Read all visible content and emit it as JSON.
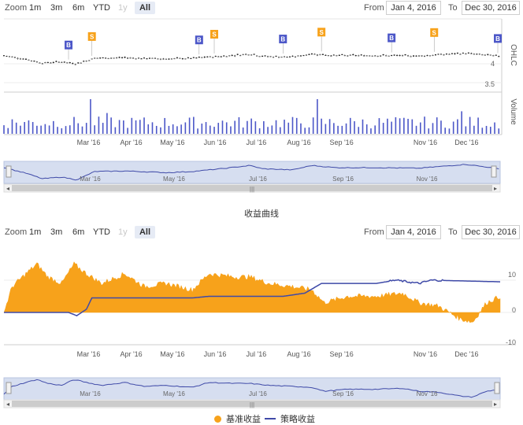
{
  "colors": {
    "navy": "#3f4aa8",
    "orange": "#f7a21b",
    "volume": "#4c57c8",
    "navigator_bg": "#d6def0",
    "grid": "#e6e6e6"
  },
  "top_panel": {
    "zoom_label": "Zoom",
    "zoom_buttons": [
      "1m",
      "3m",
      "6m",
      "YTD",
      "1y",
      "All"
    ],
    "range_from_label": "From",
    "range_from_value": "Jan 4, 2016",
    "range_to_label": "To",
    "range_to_value": "Dec 30, 2016",
    "ohlc_axis_label": "OHLC",
    "volume_axis_label": "Volume"
  },
  "section_title": "收益曲线",
  "bottom_panel": {
    "zoom_label": "Zoom",
    "zoom_buttons": [
      "1m",
      "3m",
      "6m",
      "YTD",
      "1y",
      "All"
    ],
    "range_from_label": "From",
    "range_from_value": "Jan 4, 2016",
    "range_to_label": "To",
    "range_to_value": "Dec 30, 2016"
  },
  "legend": {
    "benchmark_label": "基准收益",
    "strategy_label": "策略收益"
  },
  "navigator_labels": [
    "Mar '16",
    "May '16",
    "Jul '16",
    "Sep '16",
    "Nov '16"
  ],
  "chart_data": [
    {
      "type": "ohlc",
      "x_tick_labels": [
        "Mar '16",
        "Apr '16",
        "May '16",
        "Jun '16",
        "Jul '16",
        "Aug '16",
        "Sep '16",
        "Nov '16",
        "Dec '16"
      ],
      "y_tick_labels": [
        "3.5",
        "4"
      ],
      "ylim": [
        3.5,
        4.4
      ],
      "price_path": [
        {
          "date": "2016-01-04",
          "close": 4.22
        },
        {
          "date": "2016-01-20",
          "close": 4.12
        },
        {
          "date": "2016-02-01",
          "close": 4.02
        },
        {
          "date": "2016-02-15",
          "close": 4.05
        },
        {
          "date": "2016-02-26",
          "close": 4.0
        },
        {
          "date": "2016-03-10",
          "close": 4.15
        },
        {
          "date": "2016-04-01",
          "close": 4.16
        },
        {
          "date": "2016-05-01",
          "close": 4.13
        },
        {
          "date": "2016-05-20",
          "close": 4.15
        },
        {
          "date": "2016-06-10",
          "close": 4.2
        },
        {
          "date": "2016-07-01",
          "close": 4.26
        },
        {
          "date": "2016-07-10",
          "close": 4.2
        },
        {
          "date": "2016-08-01",
          "close": 4.18
        },
        {
          "date": "2016-08-15",
          "close": 4.26
        },
        {
          "date": "2016-09-01",
          "close": 4.22
        },
        {
          "date": "2016-10-01",
          "close": 4.22
        },
        {
          "date": "2016-11-01",
          "close": 4.21
        },
        {
          "date": "2016-12-05",
          "close": 4.28
        },
        {
          "date": "2016-12-30",
          "close": 4.2
        }
      ],
      "flags": [
        {
          "date": "2016-02-20",
          "label": "B"
        },
        {
          "date": "2016-03-08",
          "label": "S"
        },
        {
          "date": "2016-05-25",
          "label": "B"
        },
        {
          "date": "2016-06-05",
          "label": "S"
        },
        {
          "date": "2016-07-25",
          "label": "B"
        },
        {
          "date": "2016-08-22",
          "label": "S"
        },
        {
          "date": "2016-10-12",
          "label": "B"
        },
        {
          "date": "2016-11-12",
          "label": "S"
        },
        {
          "date": "2016-12-30",
          "label": "B"
        }
      ],
      "volume": {
        "spikes": [
          {
            "date": "2016-03-06",
            "value": 1.0
          },
          {
            "date": "2016-08-20",
            "value": 1.0
          },
          {
            "date": "2016-03-18",
            "value": 0.6
          },
          {
            "date": "2016-12-01",
            "value": 0.65
          }
        ]
      }
    },
    {
      "type": "area",
      "title": "收益曲线",
      "y_tick_labels": [
        "10",
        "0",
        "-10"
      ],
      "ylim": [
        -10,
        14
      ],
      "x_tick_labels": [
        "Mar '16",
        "Apr '16",
        "May '16",
        "Jun '16",
        "Jul '16",
        "Aug '16",
        "Sep '16",
        "Nov '16",
        "Dec '16"
      ],
      "series": [
        {
          "name": "基准收益",
          "type": "area",
          "points": [
            {
              "date": "2016-01-04",
              "value": 0
            },
            {
              "date": "2016-01-10",
              "value": 8
            },
            {
              "date": "2016-01-20",
              "value": 12
            },
            {
              "date": "2016-01-28",
              "value": 15
            },
            {
              "date": "2016-02-05",
              "value": 11
            },
            {
              "date": "2016-02-15",
              "value": 9
            },
            {
              "date": "2016-02-24",
              "value": 15
            },
            {
              "date": "2016-03-04",
              "value": 12
            },
            {
              "date": "2016-03-15",
              "value": 9
            },
            {
              "date": "2016-04-01",
              "value": 12
            },
            {
              "date": "2016-04-15",
              "value": 8
            },
            {
              "date": "2016-05-01",
              "value": 9
            },
            {
              "date": "2016-05-20",
              "value": 7
            },
            {
              "date": "2016-06-01",
              "value": 12
            },
            {
              "date": "2016-06-20",
              "value": 11
            },
            {
              "date": "2016-07-01",
              "value": 11
            },
            {
              "date": "2016-07-15",
              "value": 9
            },
            {
              "date": "2016-08-01",
              "value": 8
            },
            {
              "date": "2016-08-15",
              "value": 7
            },
            {
              "date": "2016-08-24",
              "value": 3
            },
            {
              "date": "2016-09-10",
              "value": 5
            },
            {
              "date": "2016-10-01",
              "value": 5
            },
            {
              "date": "2016-10-20",
              "value": 6
            },
            {
              "date": "2016-11-01",
              "value": 3
            },
            {
              "date": "2016-11-15",
              "value": 2
            },
            {
              "date": "2016-12-01",
              "value": -2
            },
            {
              "date": "2016-12-10",
              "value": -3
            },
            {
              "date": "2016-12-20",
              "value": 3
            },
            {
              "date": "2016-12-30",
              "value": 5
            }
          ]
        },
        {
          "name": "策略收益",
          "type": "line",
          "points": [
            {
              "date": "2016-01-04",
              "value": 0
            },
            {
              "date": "2016-02-20",
              "value": 0
            },
            {
              "date": "2016-02-26",
              "value": -1
            },
            {
              "date": "2016-03-04",
              "value": 1
            },
            {
              "date": "2016-03-08",
              "value": 4.5
            },
            {
              "date": "2016-05-20",
              "value": 4.5
            },
            {
              "date": "2016-06-01",
              "value": 5
            },
            {
              "date": "2016-07-25",
              "value": 5
            },
            {
              "date": "2016-08-10",
              "value": 6
            },
            {
              "date": "2016-08-22",
              "value": 9
            },
            {
              "date": "2016-10-01",
              "value": 9
            },
            {
              "date": "2016-10-15",
              "value": 10
            },
            {
              "date": "2016-11-01",
              "value": 9
            },
            {
              "date": "2016-11-10",
              "value": 10
            },
            {
              "date": "2016-12-30",
              "value": 9.5
            }
          ]
        }
      ]
    }
  ]
}
